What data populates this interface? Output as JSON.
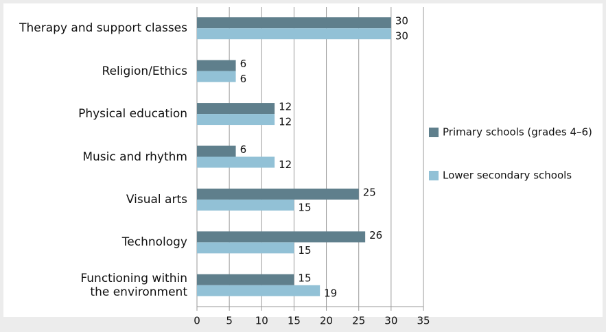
{
  "chart_data": {
    "type": "bar",
    "orientation": "horizontal",
    "categories": [
      "Therapy and support classes",
      "Religion/Ethics",
      "Physical education",
      "Music and rhythm",
      "Visual arts",
      "Technology",
      "Functioning within\nthe environment"
    ],
    "series": [
      {
        "name": "Primary schools (grades 4–6)",
        "color": "#5f7f8c",
        "values": [
          30,
          6,
          12,
          6,
          25,
          26,
          15
        ]
      },
      {
        "name": "Lower secondary schools",
        "color": "#92c1d6",
        "values": [
          30,
          6,
          12,
          12,
          15,
          15,
          19
        ]
      }
    ],
    "xlim": [
      0,
      35
    ],
    "xticks": [
      0,
      5,
      10,
      15,
      20,
      25,
      30,
      35
    ],
    "grid": true,
    "legend": "right"
  }
}
